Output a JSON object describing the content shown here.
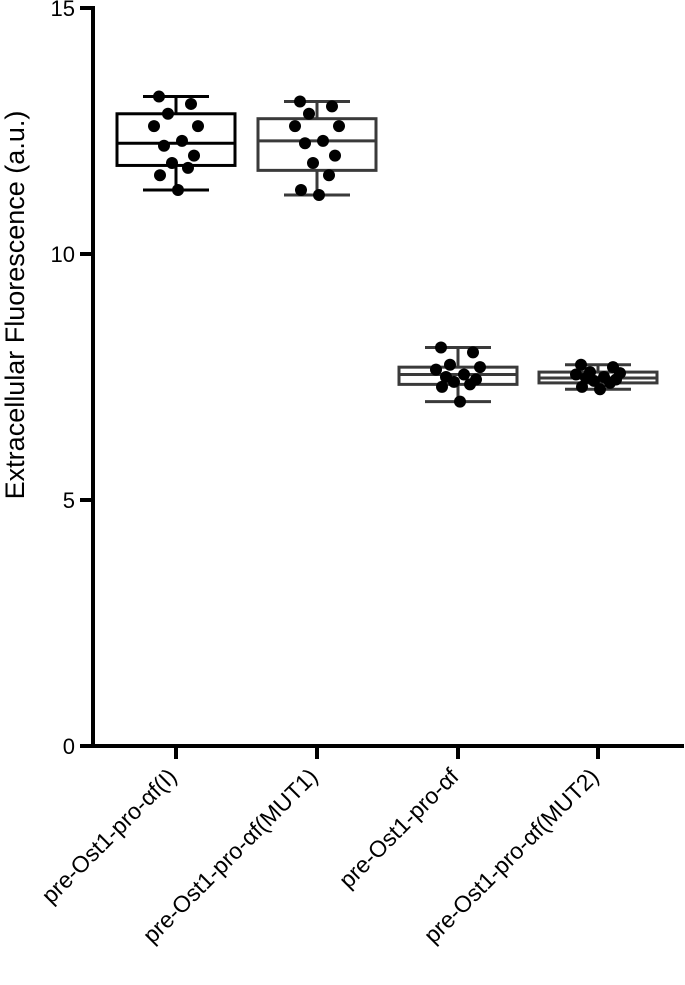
{
  "chart_data": {
    "type": "box",
    "ylabel": "Extracellular Fluorescence (a.u.)",
    "xlabel": "",
    "ylim": [
      0,
      15
    ],
    "yticks": [
      0,
      5,
      10,
      15
    ],
    "categories": [
      "pre-Ost1-pro-αf(I)",
      "pre-Ost1-pro-αf(MUT1)",
      "pre-Ost1-pro-αf",
      "pre-Ost1-pro-αf(MUT2)"
    ],
    "boxes": [
      {
        "min": 11.3,
        "q1": 11.8,
        "median": 12.25,
        "q3": 12.85,
        "max": 13.2
      },
      {
        "min": 11.2,
        "q1": 11.7,
        "median": 12.3,
        "q3": 12.75,
        "max": 13.1
      },
      {
        "min": 7.0,
        "q1": 7.35,
        "median": 7.55,
        "q3": 7.7,
        "max": 8.1
      },
      {
        "min": 7.25,
        "q1": 7.38,
        "median": 7.48,
        "q3": 7.6,
        "max": 7.75
      }
    ],
    "points": [
      [
        13.2,
        13.05,
        12.85,
        12.6,
        12.6,
        12.3,
        12.2,
        12.0,
        11.85,
        11.75,
        11.6,
        11.3
      ],
      [
        13.1,
        13.0,
        12.85,
        12.6,
        12.6,
        12.3,
        12.25,
        12.0,
        11.85,
        11.6,
        11.3,
        11.2
      ],
      [
        8.1,
        8.0,
        7.75,
        7.7,
        7.65,
        7.55,
        7.5,
        7.45,
        7.4,
        7.35,
        7.3,
        7.0
      ],
      [
        7.75,
        7.7,
        7.6,
        7.58,
        7.55,
        7.5,
        7.48,
        7.45,
        7.42,
        7.38,
        7.3,
        7.25
      ]
    ],
    "box_colors": [
      "#000000",
      "#3a3a3a",
      "#3a3a3a",
      "#3a3a3a"
    ],
    "point_color": "#000000"
  }
}
